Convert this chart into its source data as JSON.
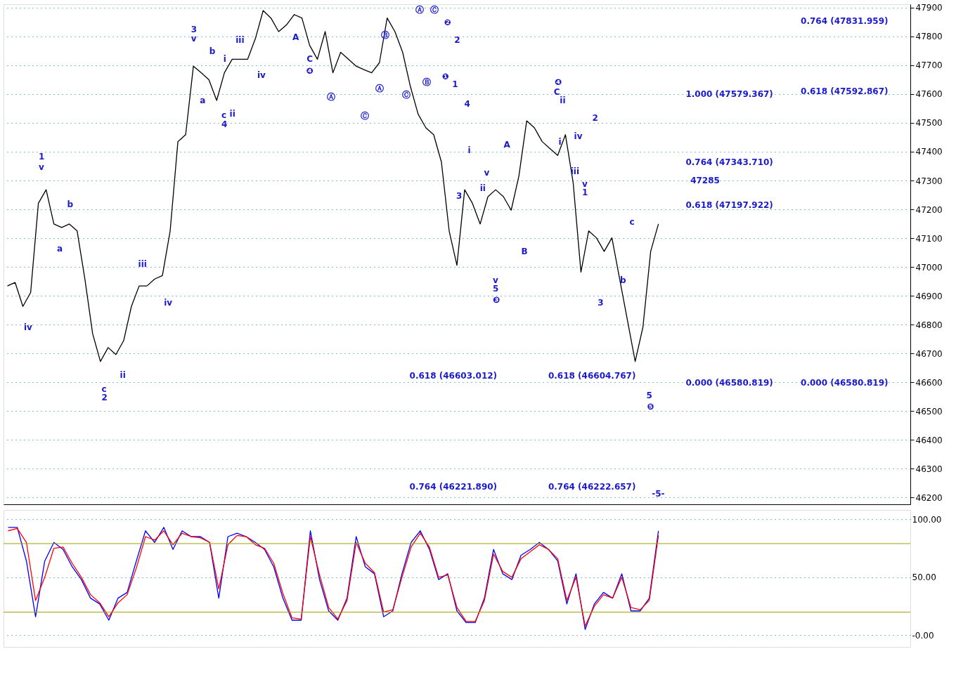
{
  "chart_data": [
    {
      "type": "line",
      "categories": [
        null,
        null,
        null,
        null,
        null,
        null,
        null,
        null,
        null,
        null,
        null,
        null,
        null,
        null,
        null,
        null,
        null,
        null,
        null,
        null,
        null,
        null,
        null,
        null,
        null,
        null,
        null,
        null,
        null,
        null,
        null,
        null,
        null,
        null,
        null,
        null,
        null,
        null,
        null,
        null,
        null,
        null,
        null,
        null,
        null,
        null,
        null,
        null,
        null,
        null,
        null,
        null,
        null,
        null,
        null,
        null,
        null,
        null,
        null,
        null,
        null,
        null,
        null,
        null,
        null,
        null,
        null,
        null,
        null,
        null,
        null,
        null,
        null,
        null,
        null,
        null,
        null,
        null,
        null,
        null,
        null,
        null,
        null,
        null,
        null,
        null,
        null,
        null,
        null,
        null,
        null,
        null,
        null,
        null,
        null,
        null,
        null,
        null,
        null,
        null,
        null,
        null,
        null,
        null,
        null,
        null,
        null,
        null,
        null,
        null,
        null,
        null,
        null,
        null,
        null,
        null,
        null
      ],
      "series": [
        {
          "color": "#000000",
          "values": [
            46934,
            46946,
            46863,
            46911,
            47221,
            47268,
            47149,
            47137,
            47149,
            47125,
            46958,
            46768,
            46672,
            46720,
            46696,
            46744,
            46863,
            46934,
            46934,
            46958,
            46970,
            47125,
            47435,
            47459,
            47697,
            47674,
            47650,
            47578,
            47674,
            47721,
            47721,
            47721,
            47793,
            47890,
            47864,
            47817,
            47840,
            47876,
            47864,
            47769,
            47721,
            47817,
            47674,
            47745,
            47721,
            47697,
            47685,
            47674,
            47709,
            47864,
            47817,
            47745,
            47626,
            47530,
            47483,
            47459,
            47364,
            47125,
            47006,
            47268,
            47221,
            47149,
            47244,
            47268,
            47244,
            47197,
            47316,
            47507,
            47483,
            47435,
            47411,
            47387,
            47459,
            47292,
            46982,
            47125,
            47101,
            47054,
            47101,
            46958,
            46815,
            46672,
            46791,
            47054,
            47149,
            null,
            null,
            null,
            null,
            null,
            null,
            null,
            null,
            null,
            null,
            null,
            null,
            null,
            null,
            null,
            null,
            null,
            null,
            null,
            null,
            null,
            null,
            null,
            null,
            null,
            null,
            null,
            null,
            null,
            null,
            null,
            null
          ]
        }
      ],
      "ylim": [
        46176,
        47912
      ],
      "yticks": [
        46200,
        46300,
        46400,
        46500,
        46600,
        46700,
        46800,
        46900,
        47000,
        47100,
        47200,
        47300,
        47400,
        47500,
        47600,
        47700,
        47800,
        47900
      ],
      "tick_labels": "y",
      "grid": "y",
      "legend": false,
      "annotations": [
        "0.764 (47831.959)",
        "1.000 (47579.367)",
        "0.618 (47592.867)",
        "0.764 (47343.710)",
        "47285",
        "0.618 (47197.922)",
        "0.618 (46603.012)",
        "0.618 (46604.767)",
        "0.000 (46580.819)",
        "0.000 (46580.819)",
        "0.764 (46221.890)",
        "0.764 (46222.657)",
        "1",
        "v",
        "iv",
        "b",
        "a",
        "c",
        "2",
        "ii",
        "iii",
        "iv",
        "3",
        "v",
        "b",
        "a",
        "i",
        "iii",
        "iv",
        "c",
        "4",
        "ii",
        "A",
        "C",
        "❹",
        "Ⓐ",
        "Ⓒ",
        "Ⓐ",
        "Ⓑ",
        "Ⓒ",
        "Ⓑ",
        "Ⓐ",
        "Ⓒ",
        "❷",
        "❶",
        "2",
        "1",
        "4",
        "3",
        "i",
        "v",
        "ii",
        "A",
        "v",
        "5",
        "❸",
        "B",
        "❹",
        "C",
        "ii",
        "iv",
        "i",
        "iii",
        "v",
        "1",
        "2",
        "3",
        "c",
        "b",
        "5",
        "❺",
        "-5-"
      ]
    },
    {
      "type": "line",
      "categories": [
        null,
        null,
        null,
        null,
        null,
        null,
        null,
        null,
        null,
        null,
        null,
        null,
        null,
        null,
        null,
        null,
        null,
        null,
        null,
        null,
        null,
        null,
        null,
        null,
        null,
        null,
        null,
        null,
        null,
        null,
        null,
        null,
        null,
        null,
        null,
        null,
        null,
        null,
        null,
        null,
        null,
        null,
        null,
        null,
        null,
        null,
        null,
        null,
        null,
        null,
        null,
        null,
        null,
        null,
        null,
        null,
        null,
        null,
        null,
        null,
        null,
        null,
        null,
        null,
        null,
        null,
        null,
        null,
        null,
        null,
        null,
        null,
        null,
        null,
        null,
        null,
        null,
        null,
        null,
        null,
        null,
        null,
        null,
        null,
        null,
        null,
        null,
        null,
        null,
        null,
        null,
        null,
        null,
        null,
        null,
        null,
        null,
        null,
        null
      ],
      "series": [
        {
          "color": "#0000ff",
          "values": [
            93,
            93,
            64,
            16,
            64,
            80,
            74,
            59,
            48,
            32,
            27,
            13,
            32,
            37,
            64,
            90,
            80,
            93,
            74,
            90,
            85,
            85,
            80,
            32,
            85,
            88,
            85,
            80,
            74,
            59,
            32,
            13,
            13,
            90,
            48,
            21,
            13,
            32,
            85,
            59,
            53,
            16,
            21,
            53,
            80,
            90,
            74,
            48,
            53,
            21,
            11,
            11,
            32,
            74,
            53,
            48,
            69,
            74,
            80,
            74,
            64,
            27,
            53,
            5,
            27,
            37,
            32,
            53,
            21,
            21,
            32,
            90,
            null,
            null,
            null,
            null,
            null,
            null,
            null,
            null,
            null,
            null,
            null,
            null,
            null,
            null,
            null,
            null,
            null,
            null,
            null,
            null,
            null,
            null,
            null,
            null,
            null,
            null,
            null
          ]
        },
        {
          "color": "#ff0000",
          "values": [
            90,
            92,
            80,
            30,
            50,
            75,
            76,
            62,
            50,
            35,
            28,
            16,
            28,
            35,
            58,
            85,
            82,
            90,
            78,
            88,
            85,
            84,
            80,
            40,
            78,
            86,
            85,
            78,
            75,
            62,
            36,
            15,
            14,
            85,
            52,
            24,
            14,
            30,
            80,
            62,
            54,
            20,
            22,
            50,
            76,
            88,
            76,
            50,
            52,
            24,
            12,
            12,
            30,
            70,
            55,
            50,
            66,
            72,
            78,
            74,
            66,
            30,
            50,
            8,
            25,
            35,
            32,
            50,
            24,
            22,
            30,
            86,
            null,
            null,
            null,
            null,
            null,
            null,
            null,
            null,
            null,
            null,
            null,
            null,
            null,
            null,
            null,
            null,
            null,
            null,
            null,
            null,
            null,
            null,
            null,
            null,
            null,
            null,
            null
          ]
        }
      ],
      "ylim": [
        -10,
        108
      ],
      "yticks": [
        {
          "value": 0,
          "label": "-0.00"
        },
        {
          "value": 50,
          "label": "50.00"
        },
        {
          "value": 100,
          "label": "100.00"
        }
      ],
      "tick_labels": "y",
      "grid": "y",
      "legend": false,
      "ref_lines": [
        {
          "axis": "y",
          "value": 79,
          "color": "#a0a000"
        },
        {
          "axis": "y",
          "value": 20,
          "color": "#a0a000"
        }
      ]
    }
  ]
}
